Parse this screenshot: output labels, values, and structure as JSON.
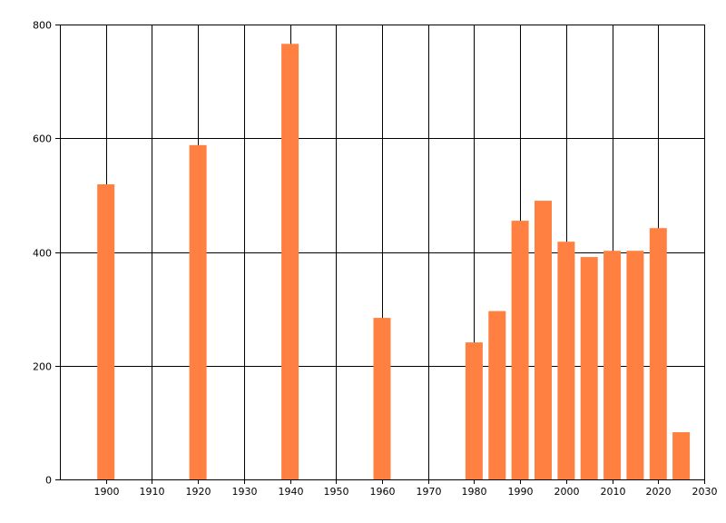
{
  "chart_data": {
    "type": "bar",
    "title": "",
    "xlabel": "",
    "ylabel": "",
    "xlim": [
      1890,
      2030
    ],
    "ylim": [
      0,
      800
    ],
    "x_ticks": [
      1900,
      1910,
      1920,
      1930,
      1940,
      1950,
      1960,
      1970,
      1980,
      1990,
      2000,
      2010,
      2020,
      2030
    ],
    "y_ticks": [
      0,
      200,
      400,
      600,
      800
    ],
    "grid": true,
    "bar_color": "#FF8040",
    "series": [
      {
        "x": [
          1900,
          1920,
          1940,
          1960,
          1980,
          1985,
          1990,
          1995,
          2000,
          2005,
          2010,
          2015,
          2020,
          2025
        ],
        "values": [
          519,
          588,
          766,
          284,
          241,
          296,
          455,
          490,
          418,
          391,
          402,
          402,
          442,
          83
        ]
      }
    ]
  }
}
